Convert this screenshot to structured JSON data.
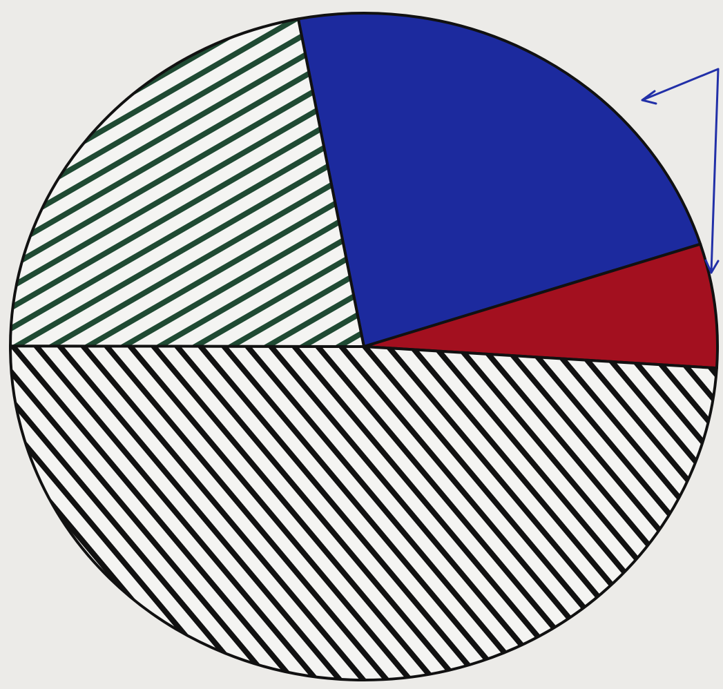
{
  "chart_data": {
    "type": "pie",
    "values": [
      23,
      6,
      49,
      22
    ],
    "colors": [
      "#1c2a9e",
      "#a3101f",
      "#111111",
      "#1f4a33"
    ],
    "hatch": [
      false,
      false,
      true,
      true
    ]
  }
}
